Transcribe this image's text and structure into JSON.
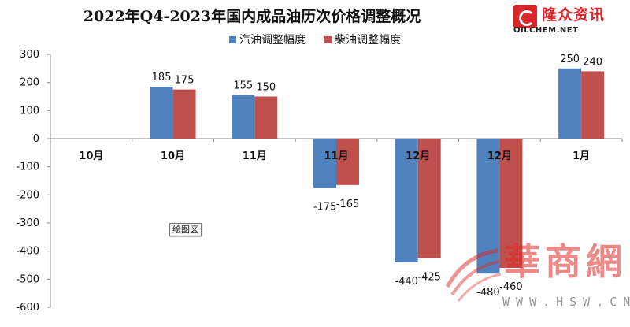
{
  "title": "2022年Q4-2023年国内成品油历次价格调整概况",
  "logo": {
    "name": "隆众资讯",
    "url": "OILCHEM.NET"
  },
  "plot_area_tag": "绘图区",
  "watermark": {
    "text": "華商網",
    "url": "WWW.HSW.CN"
  },
  "colors": {
    "gasoline": "#4f81bd",
    "diesel": "#c0504d"
  },
  "chart_data": {
    "type": "bar",
    "title": "2022年Q4-2023年国内成品油历次价格调整概况",
    "categories": [
      "10月",
      "10月",
      "11月",
      "11月",
      "12月",
      "12月",
      "1月"
    ],
    "series": [
      {
        "name": "汽油调整幅度",
        "values": [
          null,
          185,
          155,
          -175,
          -440,
          -480,
          250
        ]
      },
      {
        "name": "柴油调整幅度",
        "values": [
          null,
          175,
          150,
          -165,
          -425,
          -460,
          240
        ]
      }
    ],
    "ylim": [
      -600,
      300
    ],
    "yticks": [
      300,
      200,
      100,
      0,
      -100,
      -200,
      -300,
      -400,
      -500,
      -600
    ],
    "legend_position": "top-center",
    "grid": false
  }
}
